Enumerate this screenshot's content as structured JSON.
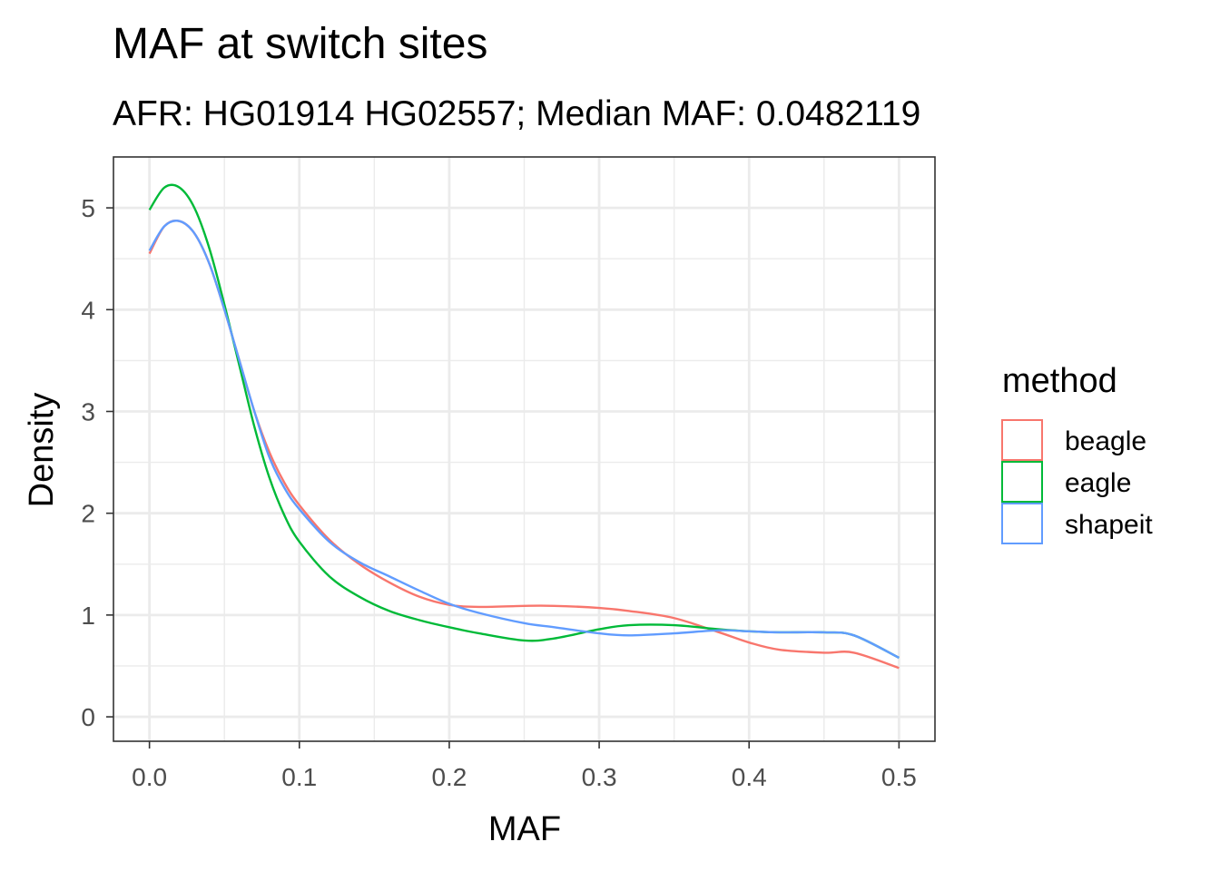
{
  "chart_data": {
    "type": "line",
    "title": "MAF at switch sites",
    "subtitle": "AFR: HG01914 HG02557; Median MAF: 0.0482119",
    "xlabel": "MAF",
    "ylabel": "Density",
    "xlim": [
      -0.024,
      0.524
    ],
    "ylim": [
      -0.24,
      5.5
    ],
    "x_ticks": [
      0.0,
      0.1,
      0.2,
      0.3,
      0.4,
      0.5
    ],
    "x_tick_labels": [
      "0.0",
      "0.1",
      "0.2",
      "0.3",
      "0.4",
      "0.5"
    ],
    "y_ticks": [
      0,
      1,
      2,
      3,
      4,
      5
    ],
    "y_tick_labels": [
      "0",
      "1",
      "2",
      "3",
      "4",
      "5"
    ],
    "grid": true,
    "legend": {
      "title": "method",
      "position": "right"
    },
    "x": [
      0.0,
      0.01,
      0.02,
      0.03,
      0.04,
      0.05,
      0.06,
      0.07,
      0.08,
      0.09,
      0.1,
      0.12,
      0.14,
      0.16,
      0.18,
      0.2,
      0.22,
      0.25,
      0.27,
      0.3,
      0.32,
      0.35,
      0.38,
      0.4,
      0.42,
      0.45,
      0.47,
      0.5
    ],
    "series": [
      {
        "name": "beagle",
        "color": "#F8766D",
        "values": [
          4.55,
          4.82,
          4.87,
          4.75,
          4.45,
          4.0,
          3.5,
          3.0,
          2.6,
          2.3,
          2.08,
          1.74,
          1.5,
          1.32,
          1.18,
          1.1,
          1.08,
          1.09,
          1.09,
          1.07,
          1.04,
          0.97,
          0.83,
          0.73,
          0.66,
          0.63,
          0.63,
          0.48
        ]
      },
      {
        "name": "eagle",
        "color": "#00BA38",
        "values": [
          4.98,
          5.2,
          5.2,
          5.0,
          4.6,
          4.05,
          3.45,
          2.85,
          2.35,
          1.98,
          1.72,
          1.38,
          1.18,
          1.04,
          0.95,
          0.88,
          0.82,
          0.75,
          0.77,
          0.86,
          0.9,
          0.9,
          0.86,
          0.84,
          0.83,
          0.83,
          0.8,
          0.58
        ]
      },
      {
        "name": "shapeit",
        "color": "#619CFF",
        "values": [
          4.58,
          4.82,
          4.87,
          4.75,
          4.45,
          4.0,
          3.5,
          3.0,
          2.55,
          2.25,
          2.04,
          1.72,
          1.52,
          1.38,
          1.24,
          1.11,
          1.02,
          0.92,
          0.88,
          0.82,
          0.8,
          0.82,
          0.85,
          0.84,
          0.83,
          0.83,
          0.8,
          0.58
        ]
      }
    ]
  }
}
